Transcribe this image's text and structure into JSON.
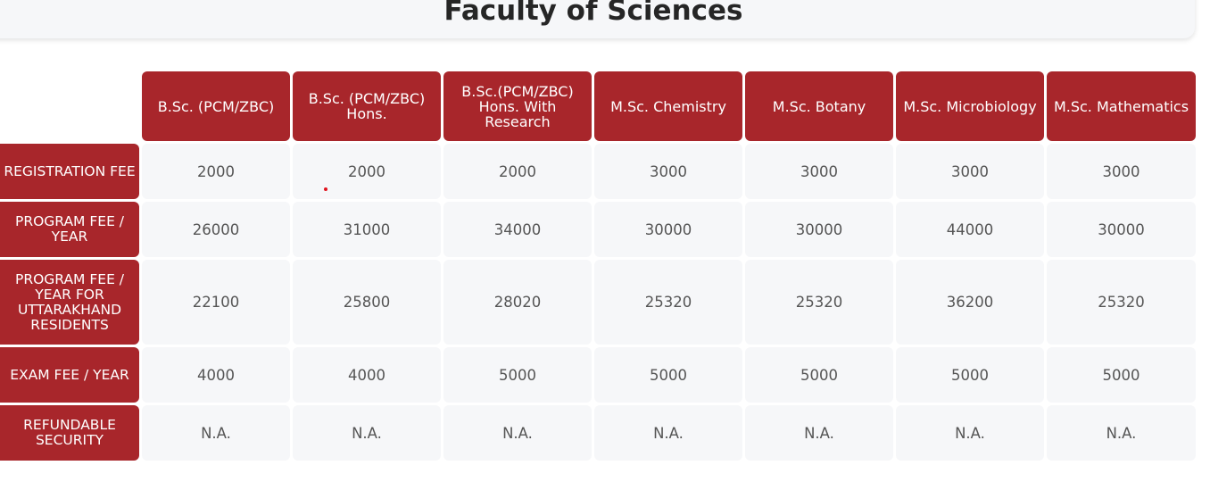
{
  "page": {
    "title": "Faculty of Sciences"
  },
  "colors": {
    "header_bg": "#a8262b",
    "header_text": "#ffffff",
    "cell_bg": "#f6f7f9",
    "cell_text": "#555555",
    "title_text": "#262626",
    "marker": "#e0141e"
  },
  "table": {
    "columns": [
      "B.Sc. (PCM/ZBC)",
      "B.Sc. (PCM/ZBC) Hons.",
      "B.Sc.(PCM/ZBC) Hons. With Research",
      "M.Sc. Chemistry",
      "M.Sc. Botany",
      "M.Sc. Microbiology",
      "M.Sc. Mathematics"
    ],
    "rows": [
      {
        "label": "REGISTRATION FEE",
        "values": [
          "2000",
          "2000",
          "2000",
          "3000",
          "3000",
          "3000",
          "3000"
        ]
      },
      {
        "label": "PROGRAM FEE / YEAR",
        "values": [
          "26000",
          "31000",
          "34000",
          "30000",
          "30000",
          "44000",
          "30000"
        ]
      },
      {
        "label": "PROGRAM FEE / YEAR FOR UTTARAKHAND RESIDENTS",
        "values": [
          "22100",
          "25800",
          "28020",
          "25320",
          "25320",
          "36200",
          "25320"
        ]
      },
      {
        "label": "EXAM FEE / YEAR",
        "values": [
          "4000",
          "4000",
          "5000",
          "5000",
          "5000",
          "5000",
          "5000"
        ]
      },
      {
        "label": "REFUNDABLE SECURITY",
        "values": [
          "N.A.",
          "N.A.",
          "N.A.",
          "N.A.",
          "N.A.",
          "N.A.",
          "N.A."
        ]
      }
    ]
  }
}
